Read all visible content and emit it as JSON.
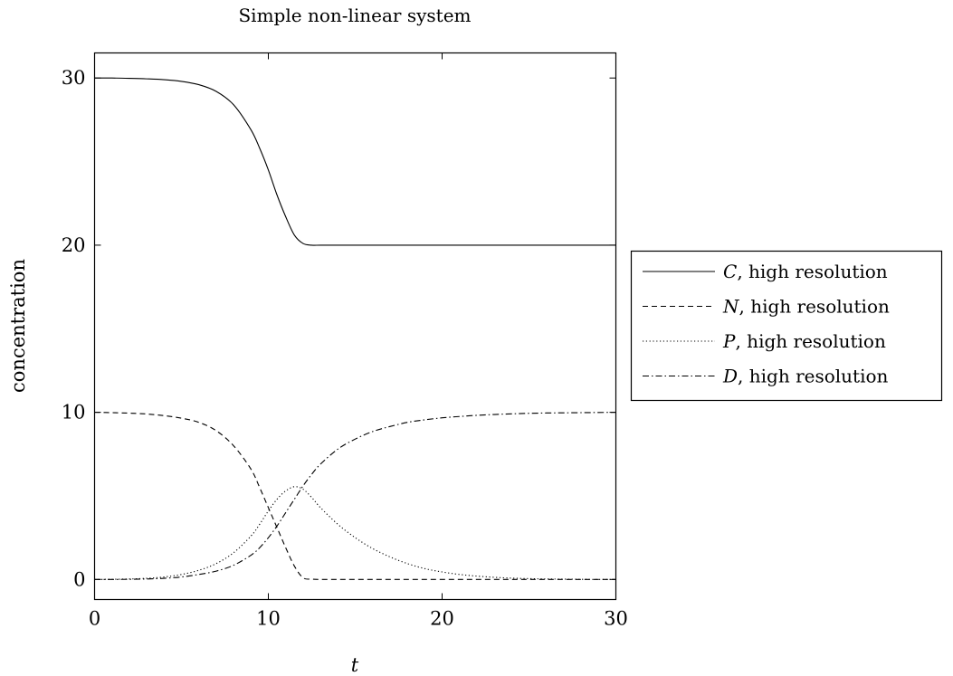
{
  "chart_data": {
    "type": "line",
    "title": "Simple non-linear system",
    "xlabel": "t",
    "ylabel": "concentration",
    "xlim": [
      0,
      30
    ],
    "ylim": [
      -1.2,
      31.5
    ],
    "xticks": [
      0,
      10,
      20,
      30
    ],
    "yticks": [
      0,
      10,
      20,
      30
    ],
    "grid": false,
    "legend_position": "outside-right",
    "x": [
      0,
      1,
      2,
      3,
      4,
      5,
      6,
      7,
      8,
      9,
      9.5,
      10,
      10.5,
      11,
      11.5,
      12,
      12.5,
      13,
      14,
      15,
      16,
      17,
      18,
      19,
      20,
      21,
      22,
      23,
      24,
      25,
      26,
      27,
      28,
      29,
      30
    ],
    "series": [
      {
        "name": "C",
        "label_suffix": ", high resolution",
        "dash": "solid",
        "values": [
          30,
          30,
          29.98,
          29.95,
          29.9,
          29.8,
          29.6,
          29.2,
          28.4,
          26.9,
          25.8,
          24.5,
          23.0,
          21.7,
          20.6,
          20.1,
          20.0,
          20.0,
          20.0,
          20.0,
          20.0,
          20.0,
          20.0,
          20.0,
          20.0,
          20.0,
          20.0,
          20.0,
          20.0,
          20.0,
          20.0,
          20.0,
          20.0,
          20.0,
          20.0
        ]
      },
      {
        "name": "N",
        "label_suffix": ", high resolution",
        "dash": "dashed",
        "values": [
          10,
          9.98,
          9.95,
          9.9,
          9.8,
          9.65,
          9.4,
          8.9,
          8.0,
          6.6,
          5.5,
          4.3,
          3.1,
          1.9,
          0.8,
          0.1,
          0.02,
          0.0,
          0.0,
          0.0,
          0.0,
          0.0,
          0.0,
          0.0,
          0.0,
          0.0,
          0.0,
          0.0,
          0.0,
          0.0,
          0.0,
          0.0,
          0.0,
          0.0,
          0.0
        ]
      },
      {
        "name": "P",
        "label_suffix": ", high resolution",
        "dash": "dotted",
        "values": [
          0,
          0.01,
          0.03,
          0.07,
          0.15,
          0.3,
          0.55,
          0.95,
          1.6,
          2.6,
          3.3,
          4.1,
          4.8,
          5.3,
          5.55,
          5.4,
          4.9,
          4.3,
          3.3,
          2.5,
          1.85,
          1.35,
          0.95,
          0.65,
          0.45,
          0.3,
          0.2,
          0.13,
          0.08,
          0.05,
          0.03,
          0.02,
          0.01,
          0.0,
          0.0
        ]
      },
      {
        "name": "D",
        "label_suffix": ", high resolution",
        "dash": "dashdot",
        "values": [
          0,
          0.0,
          0.01,
          0.03,
          0.07,
          0.15,
          0.3,
          0.5,
          0.85,
          1.45,
          1.9,
          2.5,
          3.2,
          4.0,
          4.8,
          5.6,
          6.3,
          6.9,
          7.8,
          8.4,
          8.85,
          9.15,
          9.4,
          9.55,
          9.67,
          9.75,
          9.82,
          9.87,
          9.91,
          9.94,
          9.96,
          9.97,
          9.98,
          9.99,
          10.0
        ]
      }
    ]
  }
}
